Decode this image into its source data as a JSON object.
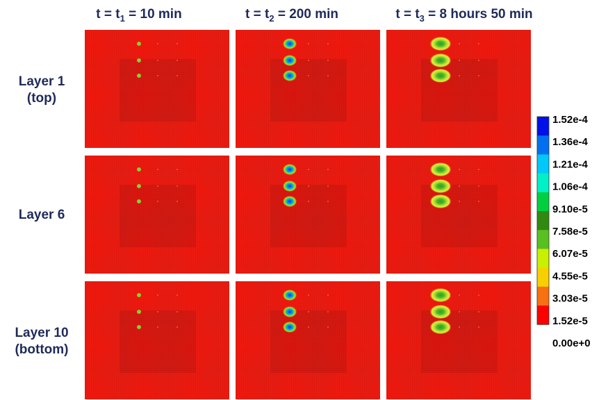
{
  "columns": [
    {
      "prefix": "t = t",
      "sub": "1",
      "suffix": " = 10 min"
    },
    {
      "prefix": "t = t",
      "sub": "2",
      "suffix": " = 200 min"
    },
    {
      "prefix": "t = t",
      "sub": "3",
      "suffix": " = 8 hours 50 min"
    }
  ],
  "rows": [
    [
      "Layer 1",
      "(top)"
    ],
    [
      "Layer 6"
    ],
    [
      "Layer 10",
      "(bottom)"
    ]
  ],
  "colorbar": {
    "labels": [
      "1.52e-4",
      "1.36e-4",
      "1.21e-4",
      "1.06e-4",
      "9.10e-5",
      "7.58e-5",
      "6.07e-5",
      "4.55e-5",
      "3.03e-5",
      "1.52e-5",
      "0.00e+0"
    ],
    "colors": [
      "#0010e8",
      "#0070f0",
      "#00c8f8",
      "#00f0c8",
      "#00d040",
      "#308a10",
      "#58c020",
      "#c8f000",
      "#f8d000",
      "#f87010",
      "#ff0000"
    ]
  }
}
